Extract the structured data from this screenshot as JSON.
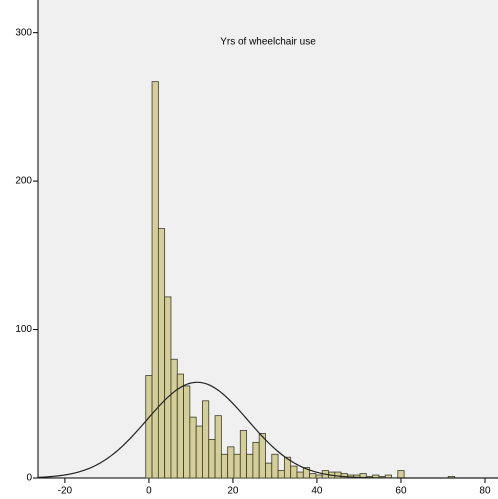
{
  "chart_data": {
    "type": "histogram",
    "title": "Yrs of wheelchair use",
    "bins": [
      -0.75,
      0.75,
      2.25,
      3.75,
      5.25,
      6.75,
      8.25,
      9.75,
      11.25,
      12.75,
      14.25,
      15.75,
      17.25,
      18.75,
      20.25,
      21.75,
      23.25,
      24.75,
      26.25,
      27.75,
      29.25,
      30.75,
      32.25,
      33.75,
      35.25,
      36.75,
      38.25,
      39.75,
      41.25,
      42.75,
      44.25,
      45.75,
      47.25,
      48.75,
      50.25,
      51.75,
      53.25,
      54.75,
      56.25,
      57.75,
      59.25,
      60.75,
      62.25,
      63.75,
      65.25,
      66.75,
      68.25,
      69.75,
      71.25,
      72.75
    ],
    "values": [
      69,
      267,
      168,
      122,
      80,
      70,
      62,
      41,
      35,
      52,
      26,
      42,
      16,
      21,
      16,
      32,
      16,
      24,
      30,
      10,
      16,
      5,
      14,
      8,
      4,
      7,
      3,
      2,
      5,
      4,
      4,
      3,
      2,
      2,
      3,
      1,
      2,
      1,
      2,
      0,
      5,
      0,
      0,
      0,
      0,
      0,
      0,
      0,
      1
    ],
    "color": "#d4cf98",
    "normal_curve": {
      "mean": 11.5,
      "std": 12
    },
    "xlim": [
      -26.4,
      83.1
    ],
    "xticks": [
      -20,
      0,
      20,
      40,
      60,
      80
    ],
    "ylim": [
      0,
      322
    ],
    "yticks": [
      0,
      100,
      200,
      300
    ]
  }
}
